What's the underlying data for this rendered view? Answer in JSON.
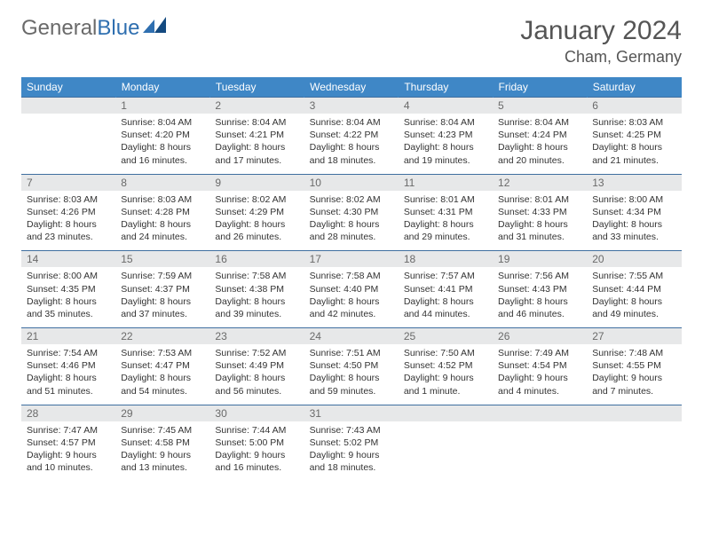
{
  "logo": {
    "text_a": "General",
    "text_b": "Blue"
  },
  "title": "January 2024",
  "location": "Cham, Germany",
  "colors": {
    "header_bg": "#3f87c6",
    "header_text": "#ffffff",
    "band_bg": "#e7e8e9",
    "band_text": "#6a6a6a",
    "row_border": "#3f6fa0",
    "body_text": "#333333",
    "page_bg": "#ffffff",
    "logo_gray": "#6a6a6a",
    "logo_blue": "#2f6fb0"
  },
  "day_labels": [
    "Sunday",
    "Monday",
    "Tuesday",
    "Wednesday",
    "Thursday",
    "Friday",
    "Saturday"
  ],
  "weeks": [
    [
      {
        "num": "",
        "lines": []
      },
      {
        "num": "1",
        "lines": [
          "Sunrise: 8:04 AM",
          "Sunset: 4:20 PM",
          "Daylight: 8 hours and 16 minutes."
        ]
      },
      {
        "num": "2",
        "lines": [
          "Sunrise: 8:04 AM",
          "Sunset: 4:21 PM",
          "Daylight: 8 hours and 17 minutes."
        ]
      },
      {
        "num": "3",
        "lines": [
          "Sunrise: 8:04 AM",
          "Sunset: 4:22 PM",
          "Daylight: 8 hours and 18 minutes."
        ]
      },
      {
        "num": "4",
        "lines": [
          "Sunrise: 8:04 AM",
          "Sunset: 4:23 PM",
          "Daylight: 8 hours and 19 minutes."
        ]
      },
      {
        "num": "5",
        "lines": [
          "Sunrise: 8:04 AM",
          "Sunset: 4:24 PM",
          "Daylight: 8 hours and 20 minutes."
        ]
      },
      {
        "num": "6",
        "lines": [
          "Sunrise: 8:03 AM",
          "Sunset: 4:25 PM",
          "Daylight: 8 hours and 21 minutes."
        ]
      }
    ],
    [
      {
        "num": "7",
        "lines": [
          "Sunrise: 8:03 AM",
          "Sunset: 4:26 PM",
          "Daylight: 8 hours and 23 minutes."
        ]
      },
      {
        "num": "8",
        "lines": [
          "Sunrise: 8:03 AM",
          "Sunset: 4:28 PM",
          "Daylight: 8 hours and 24 minutes."
        ]
      },
      {
        "num": "9",
        "lines": [
          "Sunrise: 8:02 AM",
          "Sunset: 4:29 PM",
          "Daylight: 8 hours and 26 minutes."
        ]
      },
      {
        "num": "10",
        "lines": [
          "Sunrise: 8:02 AM",
          "Sunset: 4:30 PM",
          "Daylight: 8 hours and 28 minutes."
        ]
      },
      {
        "num": "11",
        "lines": [
          "Sunrise: 8:01 AM",
          "Sunset: 4:31 PM",
          "Daylight: 8 hours and 29 minutes."
        ]
      },
      {
        "num": "12",
        "lines": [
          "Sunrise: 8:01 AM",
          "Sunset: 4:33 PM",
          "Daylight: 8 hours and 31 minutes."
        ]
      },
      {
        "num": "13",
        "lines": [
          "Sunrise: 8:00 AM",
          "Sunset: 4:34 PM",
          "Daylight: 8 hours and 33 minutes."
        ]
      }
    ],
    [
      {
        "num": "14",
        "lines": [
          "Sunrise: 8:00 AM",
          "Sunset: 4:35 PM",
          "Daylight: 8 hours and 35 minutes."
        ]
      },
      {
        "num": "15",
        "lines": [
          "Sunrise: 7:59 AM",
          "Sunset: 4:37 PM",
          "Daylight: 8 hours and 37 minutes."
        ]
      },
      {
        "num": "16",
        "lines": [
          "Sunrise: 7:58 AM",
          "Sunset: 4:38 PM",
          "Daylight: 8 hours and 39 minutes."
        ]
      },
      {
        "num": "17",
        "lines": [
          "Sunrise: 7:58 AM",
          "Sunset: 4:40 PM",
          "Daylight: 8 hours and 42 minutes."
        ]
      },
      {
        "num": "18",
        "lines": [
          "Sunrise: 7:57 AM",
          "Sunset: 4:41 PM",
          "Daylight: 8 hours and 44 minutes."
        ]
      },
      {
        "num": "19",
        "lines": [
          "Sunrise: 7:56 AM",
          "Sunset: 4:43 PM",
          "Daylight: 8 hours and 46 minutes."
        ]
      },
      {
        "num": "20",
        "lines": [
          "Sunrise: 7:55 AM",
          "Sunset: 4:44 PM",
          "Daylight: 8 hours and 49 minutes."
        ]
      }
    ],
    [
      {
        "num": "21",
        "lines": [
          "Sunrise: 7:54 AM",
          "Sunset: 4:46 PM",
          "Daylight: 8 hours and 51 minutes."
        ]
      },
      {
        "num": "22",
        "lines": [
          "Sunrise: 7:53 AM",
          "Sunset: 4:47 PM",
          "Daylight: 8 hours and 54 minutes."
        ]
      },
      {
        "num": "23",
        "lines": [
          "Sunrise: 7:52 AM",
          "Sunset: 4:49 PM",
          "Daylight: 8 hours and 56 minutes."
        ]
      },
      {
        "num": "24",
        "lines": [
          "Sunrise: 7:51 AM",
          "Sunset: 4:50 PM",
          "Daylight: 8 hours and 59 minutes."
        ]
      },
      {
        "num": "25",
        "lines": [
          "Sunrise: 7:50 AM",
          "Sunset: 4:52 PM",
          "Daylight: 9 hours and 1 minute."
        ]
      },
      {
        "num": "26",
        "lines": [
          "Sunrise: 7:49 AM",
          "Sunset: 4:54 PM",
          "Daylight: 9 hours and 4 minutes."
        ]
      },
      {
        "num": "27",
        "lines": [
          "Sunrise: 7:48 AM",
          "Sunset: 4:55 PM",
          "Daylight: 9 hours and 7 minutes."
        ]
      }
    ],
    [
      {
        "num": "28",
        "lines": [
          "Sunrise: 7:47 AM",
          "Sunset: 4:57 PM",
          "Daylight: 9 hours and 10 minutes."
        ]
      },
      {
        "num": "29",
        "lines": [
          "Sunrise: 7:45 AM",
          "Sunset: 4:58 PM",
          "Daylight: 9 hours and 13 minutes."
        ]
      },
      {
        "num": "30",
        "lines": [
          "Sunrise: 7:44 AM",
          "Sunset: 5:00 PM",
          "Daylight: 9 hours and 16 minutes."
        ]
      },
      {
        "num": "31",
        "lines": [
          "Sunrise: 7:43 AM",
          "Sunset: 5:02 PM",
          "Daylight: 9 hours and 18 minutes."
        ]
      },
      {
        "num": "",
        "lines": []
      },
      {
        "num": "",
        "lines": []
      },
      {
        "num": "",
        "lines": []
      }
    ]
  ]
}
